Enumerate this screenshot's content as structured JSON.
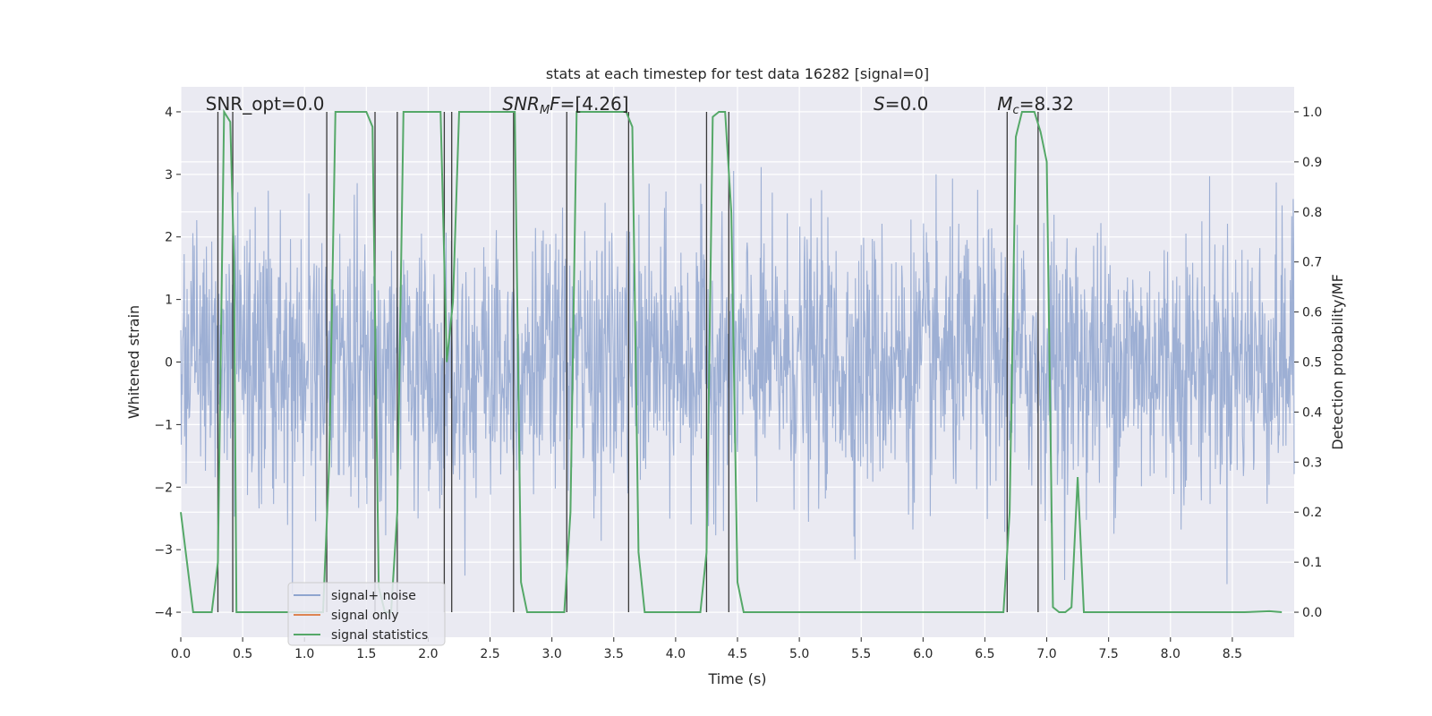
{
  "chart_data": {
    "type": "line",
    "title": "stats at each timestep for test data 16282 [signal=0]",
    "xlabel": "Time (s)",
    "ylabel": "Whitened strain",
    "y2label": "Detection probability/MF",
    "xlim": [
      0.0,
      9.0
    ],
    "ylim": [
      -4.4,
      4.4
    ],
    "y2lim": [
      -0.05,
      1.05
    ],
    "xticks": [
      "0.0",
      "0.5",
      "1.0",
      "1.5",
      "2.0",
      "2.5",
      "3.0",
      "3.5",
      "4.0",
      "4.5",
      "5.0",
      "5.5",
      "6.0",
      "6.5",
      "7.0",
      "7.5",
      "8.0",
      "8.5"
    ],
    "yticks": [
      "4",
      "3",
      "2",
      "1",
      "0",
      "−1",
      "−2",
      "−3",
      "−4"
    ],
    "y2ticks": [
      "1.0",
      "0.9",
      "0.8",
      "0.7",
      "0.6",
      "0.5",
      "0.4",
      "0.3",
      "0.2",
      "0.1",
      "0.0"
    ],
    "annotations": [
      {
        "html": "SNR_opt=0.0",
        "x": 0.2
      },
      {
        "html": "<tspan font-style=\"italic\">SNR</tspan><tspan font-style=\"italic\" font-size=\"13\" dy=\"4\">M</tspan><tspan font-style=\"italic\" dy=\"-4\">F</tspan>=[4.26]",
        "x": 2.6
      },
      {
        "html": "<tspan font-style=\"italic\">S</tspan>=0.0",
        "x": 5.6
      },
      {
        "html": "<tspan font-style=\"italic\">M</tspan><tspan font-style=\"italic\" font-size=\"13\" dy=\"4\">c</tspan><tspan dy=\"-4\">=8.32</tspan>",
        "x": 6.6
      }
    ],
    "legend": {
      "position": "lower-left",
      "entries": [
        "signal+ noise",
        "signal only",
        "signal statistics"
      ]
    },
    "series": [
      {
        "name": "signal+ noise",
        "color": "#8fa5cf",
        "kind": "noise",
        "sample_rate": 256,
        "amplitude_sigma": 1.0,
        "max_abs": 4.0
      },
      {
        "name": "signal only",
        "color": "#dd8452",
        "values": []
      },
      {
        "name": "signal statistics",
        "color": "#55a868",
        "axis": "right",
        "x": [
          0.0,
          0.05,
          0.1,
          0.2,
          0.25,
          0.3,
          0.35,
          0.4,
          0.43,
          0.45,
          0.5,
          0.55,
          0.6,
          0.7,
          0.8,
          0.9,
          1.0,
          1.1,
          1.15,
          1.2,
          1.25,
          1.3,
          1.4,
          1.5,
          1.55,
          1.6,
          1.65,
          1.7,
          1.75,
          1.8,
          1.9,
          2.0,
          2.1,
          2.15,
          2.2,
          2.25,
          2.3,
          2.4,
          2.5,
          2.6,
          2.7,
          2.75,
          2.8,
          2.9,
          3.0,
          3.1,
          3.15,
          3.2,
          3.3,
          3.4,
          3.5,
          3.6,
          3.65,
          3.7,
          3.75,
          3.8,
          3.9,
          4.0,
          4.1,
          4.2,
          4.25,
          4.3,
          4.35,
          4.4,
          4.45,
          4.5,
          4.55,
          4.6,
          5.0,
          5.5,
          6.0,
          6.5,
          6.65,
          6.7,
          6.75,
          6.8,
          6.85,
          6.9,
          6.95,
          7.0,
          7.05,
          7.1,
          7.15,
          7.2,
          7.25,
          7.3,
          7.4,
          7.6,
          7.8,
          8.0,
          8.2,
          8.4,
          8.6,
          8.8,
          8.9
        ],
        "values": [
          0.2,
          0.1,
          0.0,
          0.0,
          0.0,
          0.1,
          1.0,
          0.98,
          0.7,
          0.0,
          0.0,
          0.0,
          0.0,
          0.0,
          0.0,
          0.0,
          0.0,
          0.0,
          0.0,
          0.3,
          1.0,
          1.0,
          1.0,
          1.0,
          0.97,
          0.05,
          0.0,
          0.0,
          0.2,
          1.0,
          1.0,
          1.0,
          1.0,
          0.5,
          0.62,
          1.0,
          1.0,
          1.0,
          1.0,
          1.0,
          1.0,
          0.06,
          0.0,
          0.0,
          0.0,
          0.0,
          0.2,
          1.0,
          1.0,
          1.0,
          1.0,
          1.0,
          0.97,
          0.12,
          0.0,
          0.0,
          0.0,
          0.0,
          0.0,
          0.0,
          0.12,
          0.99,
          1.0,
          1.0,
          0.8,
          0.06,
          0.0,
          0.0,
          0.0,
          0.0,
          0.0,
          0.0,
          0.0,
          0.2,
          0.95,
          1.0,
          1.0,
          1.0,
          0.96,
          0.9,
          0.01,
          0.0,
          0.0,
          0.01,
          0.27,
          0.0,
          0.0,
          0.0,
          0.0,
          0.0,
          0.0,
          0.0,
          0.0,
          0.002,
          0.0
        ]
      },
      {
        "name": "vertical markers",
        "color": "#3a3a3a",
        "x": [
          0.3,
          0.42,
          1.18,
          1.57,
          1.75,
          2.13,
          2.19,
          2.69,
          3.12,
          3.62,
          4.25,
          4.43,
          6.68,
          6.93
        ]
      }
    ]
  }
}
